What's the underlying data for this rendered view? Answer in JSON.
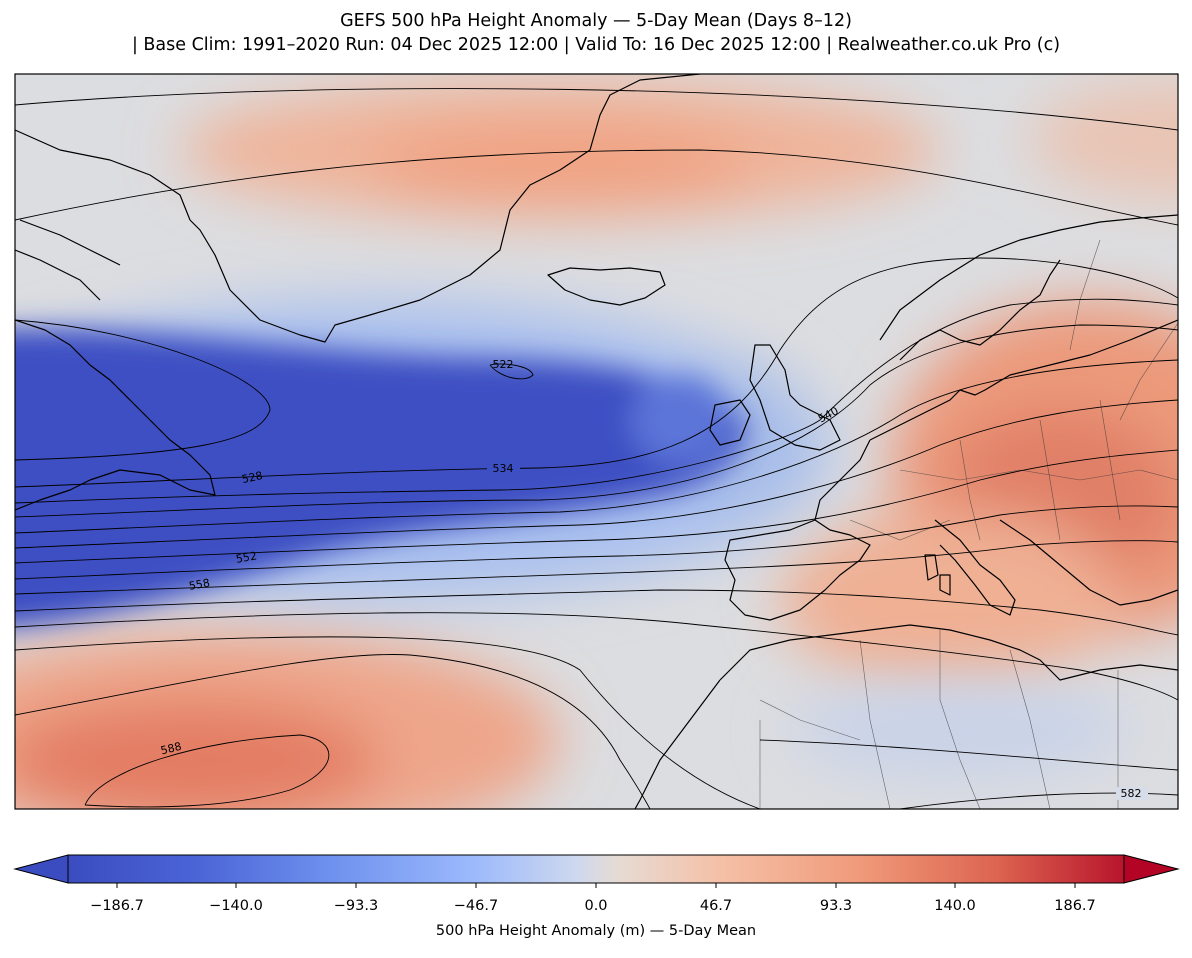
{
  "header": {
    "title_line1": "GEFS 500 hPa Height Anomaly — 5-Day Mean (Days 8–12)",
    "title_line2": "| Base Clim: 1991–2020 Run: 04 Dec 2025 12:00 | Valid To: 16 Dec 2025 12:00 | Realweather.co.uk Pro (c)"
  },
  "map": {
    "field": "500 hPa geopotential height anomaly",
    "contour_labels": [
      "522",
      "528",
      "534",
      "540",
      "552",
      "558",
      "588",
      "582"
    ],
    "palette": {
      "strong_negative": "#3b4cc0",
      "neutral": "#dddddd",
      "strong_positive": "#b40426"
    }
  },
  "colorbar": {
    "ticks": [
      "−186.7",
      "−140.0",
      "−93.3",
      "−46.7",
      "0.0",
      "46.7",
      "93.3",
      "140.0",
      "186.7"
    ],
    "label": "500 hPa Height Anomaly (m) — 5-Day Mean",
    "extend": "both"
  }
}
